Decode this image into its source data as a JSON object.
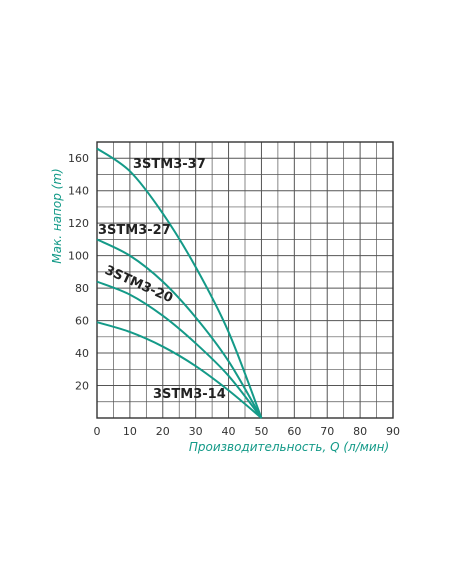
{
  "chart_data": {
    "type": "line",
    "xlabel": "Производительность, Q (л/мин)",
    "ylabel": "Мак. напор (m)",
    "xlim": [
      0,
      90
    ],
    "ylim": [
      0,
      170
    ],
    "x_ticks": [
      0,
      10,
      20,
      30,
      40,
      50,
      60,
      70,
      80,
      90
    ],
    "y_ticks": [
      20,
      40,
      60,
      80,
      100,
      120,
      140,
      160
    ],
    "grid": true,
    "colors": {
      "curve": "#149a88",
      "axis_title": "#149a88",
      "grid": "#555555"
    },
    "series": [
      {
        "name": "3STM3-37",
        "x": [
          0,
          10,
          20,
          30,
          40,
          50
        ],
        "y": [
          166,
          152,
          126,
          93,
          53,
          0
        ]
      },
      {
        "name": "3STM3-27",
        "x": [
          0,
          10,
          20,
          30,
          40,
          50
        ],
        "y": [
          110,
          100,
          84,
          62,
          35,
          0
        ]
      },
      {
        "name": "3STM3-20",
        "x": [
          0,
          10,
          20,
          30,
          40,
          50
        ],
        "y": [
          84,
          76,
          63,
          46,
          26,
          0
        ]
      },
      {
        "name": "3STM3-14",
        "x": [
          0,
          10,
          20,
          30,
          40,
          50
        ],
        "y": [
          59,
          53,
          44,
          32,
          17,
          0
        ]
      }
    ]
  }
}
